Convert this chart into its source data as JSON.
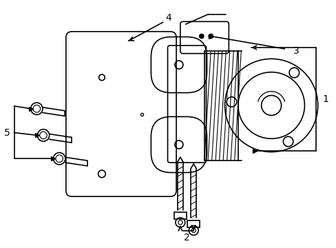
{
  "title": "",
  "background_color": "#ffffff",
  "line_color": "#000000",
  "line_width": 1.2,
  "figsize": [
    4.89,
    3.6
  ],
  "dpi": 100,
  "label_fontsize": 10
}
